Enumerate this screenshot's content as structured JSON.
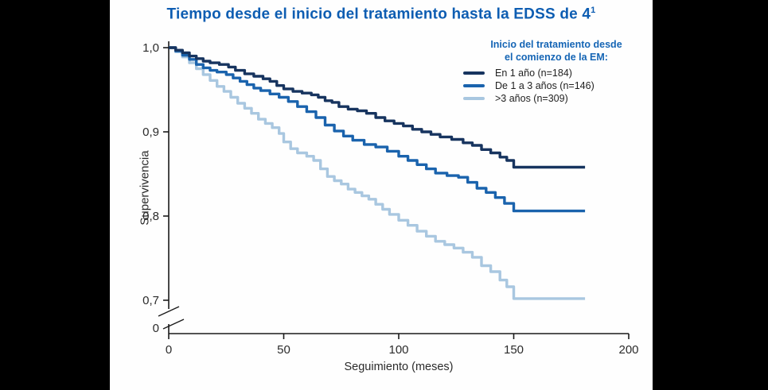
{
  "page": {
    "title": "Tiempo desde el inicio del tratamiento hasta la EDSS de 4",
    "title_superscript": "1"
  },
  "chart_data": {
    "type": "line",
    "subtype": "kaplan-meier-step-survival",
    "title": "Tiempo desde el inicio del tratamiento hasta la EDSS de 4¹",
    "xlabel": "Seguimiento (meses)",
    "ylabel": "Supervivencia",
    "xlim": [
      0,
      200
    ],
    "ylim_displayed": [
      0.7,
      1.0
    ],
    "y_axis_break_to_zero": true,
    "y_break_label": "0",
    "x_ticks": [
      0,
      50,
      100,
      150,
      200
    ],
    "y_ticks": [
      1.0,
      0.9,
      0.8,
      0.7
    ],
    "y_tick_labels": [
      "1,0",
      "0,9",
      "0,8",
      "0,7"
    ],
    "grid": false,
    "legend_position": "top-right",
    "legend_title_lines": [
      "Inicio del tratamiento desde",
      "el comienzo de la EM:"
    ],
    "axis_color": "#1a1a1a",
    "series": [
      {
        "label": "En 1 año (n=184)",
        "color": "#17345f",
        "points": [
          [
            0,
            1.0
          ],
          [
            3,
            0.997
          ],
          [
            6,
            0.994
          ],
          [
            9,
            0.99
          ],
          [
            12,
            0.987
          ],
          [
            15,
            0.984
          ],
          [
            18,
            0.982
          ],
          [
            22,
            0.98
          ],
          [
            26,
            0.977
          ],
          [
            29,
            0.973
          ],
          [
            33,
            0.969
          ],
          [
            37,
            0.966
          ],
          [
            41,
            0.963
          ],
          [
            44,
            0.96
          ],
          [
            47,
            0.955
          ],
          [
            50,
            0.951
          ],
          [
            54,
            0.948
          ],
          [
            58,
            0.946
          ],
          [
            62,
            0.944
          ],
          [
            65,
            0.941
          ],
          [
            68,
            0.937
          ],
          [
            71,
            0.935
          ],
          [
            74,
            0.93
          ],
          [
            78,
            0.927
          ],
          [
            82,
            0.925
          ],
          [
            86,
            0.922
          ],
          [
            90,
            0.917
          ],
          [
            94,
            0.913
          ],
          [
            98,
            0.91
          ],
          [
            102,
            0.907
          ],
          [
            106,
            0.903
          ],
          [
            110,
            0.9
          ],
          [
            114,
            0.897
          ],
          [
            118,
            0.894
          ],
          [
            123,
            0.891
          ],
          [
            128,
            0.887
          ],
          [
            132,
            0.884
          ],
          [
            136,
            0.879
          ],
          [
            140,
            0.875
          ],
          [
            144,
            0.87
          ],
          [
            147,
            0.866
          ],
          [
            150,
            0.858
          ],
          [
            181,
            0.858
          ]
        ]
      },
      {
        "label": "De 1 a 3 años (n=146)",
        "color": "#1a63ad",
        "points": [
          [
            0,
            1.0
          ],
          [
            3,
            0.996
          ],
          [
            6,
            0.991
          ],
          [
            9,
            0.986
          ],
          [
            12,
            0.98
          ],
          [
            15,
            0.976
          ],
          [
            18,
            0.973
          ],
          [
            21,
            0.971
          ],
          [
            25,
            0.968
          ],
          [
            28,
            0.964
          ],
          [
            31,
            0.96
          ],
          [
            34,
            0.956
          ],
          [
            37,
            0.952
          ],
          [
            40,
            0.949
          ],
          [
            44,
            0.945
          ],
          [
            48,
            0.941
          ],
          [
            52,
            0.936
          ],
          [
            56,
            0.93
          ],
          [
            60,
            0.924
          ],
          [
            64,
            0.917
          ],
          [
            68,
            0.908
          ],
          [
            72,
            0.901
          ],
          [
            76,
            0.895
          ],
          [
            80,
            0.89
          ],
          [
            85,
            0.885
          ],
          [
            90,
            0.882
          ],
          [
            95,
            0.877
          ],
          [
            100,
            0.871
          ],
          [
            104,
            0.866
          ],
          [
            108,
            0.861
          ],
          [
            112,
            0.856
          ],
          [
            116,
            0.851
          ],
          [
            121,
            0.848
          ],
          [
            126,
            0.846
          ],
          [
            130,
            0.84
          ],
          [
            134,
            0.833
          ],
          [
            138,
            0.828
          ],
          [
            142,
            0.822
          ],
          [
            146,
            0.815
          ],
          [
            150,
            0.806
          ],
          [
            181,
            0.806
          ]
        ]
      },
      {
        "label": ">3 años (n=309)",
        "color": "#a9c7e0",
        "points": [
          [
            0,
            1.0
          ],
          [
            3,
            0.995
          ],
          [
            6,
            0.989
          ],
          [
            9,
            0.982
          ],
          [
            12,
            0.975
          ],
          [
            15,
            0.968
          ],
          [
            18,
            0.961
          ],
          [
            21,
            0.954
          ],
          [
            24,
            0.948
          ],
          [
            27,
            0.941
          ],
          [
            30,
            0.934
          ],
          [
            33,
            0.928
          ],
          [
            36,
            0.922
          ],
          [
            39,
            0.915
          ],
          [
            42,
            0.91
          ],
          [
            45,
            0.905
          ],
          [
            48,
            0.898
          ],
          [
            50,
            0.888
          ],
          [
            53,
            0.88
          ],
          [
            56,
            0.875
          ],
          [
            60,
            0.871
          ],
          [
            63,
            0.866
          ],
          [
            66,
            0.856
          ],
          [
            69,
            0.847
          ],
          [
            72,
            0.842
          ],
          [
            75,
            0.838
          ],
          [
            78,
            0.832
          ],
          [
            81,
            0.828
          ],
          [
            84,
            0.824
          ],
          [
            87,
            0.82
          ],
          [
            90,
            0.814
          ],
          [
            93,
            0.808
          ],
          [
            96,
            0.802
          ],
          [
            100,
            0.795
          ],
          [
            104,
            0.789
          ],
          [
            108,
            0.782
          ],
          [
            112,
            0.776
          ],
          [
            116,
            0.77
          ],
          [
            120,
            0.766
          ],
          [
            124,
            0.762
          ],
          [
            128,
            0.757
          ],
          [
            132,
            0.751
          ],
          [
            136,
            0.741
          ],
          [
            140,
            0.734
          ],
          [
            144,
            0.724
          ],
          [
            147,
            0.716
          ],
          [
            150,
            0.702
          ],
          [
            181,
            0.702
          ]
        ]
      }
    ]
  }
}
